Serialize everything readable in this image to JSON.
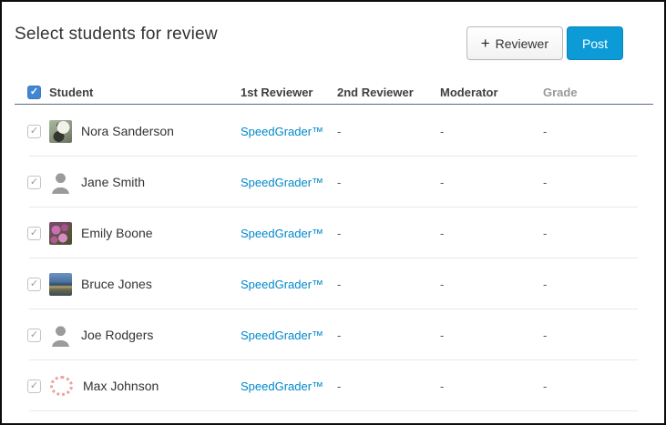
{
  "page": {
    "title": "Select students for review"
  },
  "toolbar": {
    "add_reviewer_icon": "+",
    "add_reviewer_label": "Reviewer",
    "post_label": "Post"
  },
  "colors": {
    "post_button_blue": "#0d9bd8",
    "link_blue": "#0088cc",
    "select_all_checkbox_blue": "#4285d0",
    "header_rule_blue_gray": "#5b6c7c"
  },
  "table": {
    "select_all_checked": true,
    "columns": {
      "student": "Student",
      "first_reviewer": "1st Reviewer",
      "second_reviewer": "2nd Reviewer",
      "moderator": "Moderator",
      "grade": "Grade"
    },
    "rows": [
      {
        "checked": true,
        "avatar": "panda-photo",
        "name": "Nora Sanderson",
        "first_reviewer": "SpeedGrader™",
        "second_reviewer": "-",
        "moderator": "-",
        "grade": "-"
      },
      {
        "checked": true,
        "avatar": "person-silhouette",
        "name": "Jane Smith",
        "first_reviewer": "SpeedGrader™",
        "second_reviewer": "-",
        "moderator": "-",
        "grade": "-"
      },
      {
        "checked": true,
        "avatar": "flowers-photo",
        "name": "Emily Boone",
        "first_reviewer": "SpeedGrader™",
        "second_reviewer": "-",
        "moderator": "-",
        "grade": "-"
      },
      {
        "checked": true,
        "avatar": "landscape-photo",
        "name": "Bruce Jones",
        "first_reviewer": "SpeedGrader™",
        "second_reviewer": "-",
        "moderator": "-",
        "grade": "-"
      },
      {
        "checked": true,
        "avatar": "person-silhouette",
        "name": "Joe Rodgers",
        "first_reviewer": "SpeedGrader™",
        "second_reviewer": "-",
        "moderator": "-",
        "grade": "-"
      },
      {
        "checked": true,
        "avatar": "canvas-logo",
        "name": "Max Johnson",
        "first_reviewer": "SpeedGrader™",
        "second_reviewer": "-",
        "moderator": "-",
        "grade": "-"
      }
    ]
  }
}
